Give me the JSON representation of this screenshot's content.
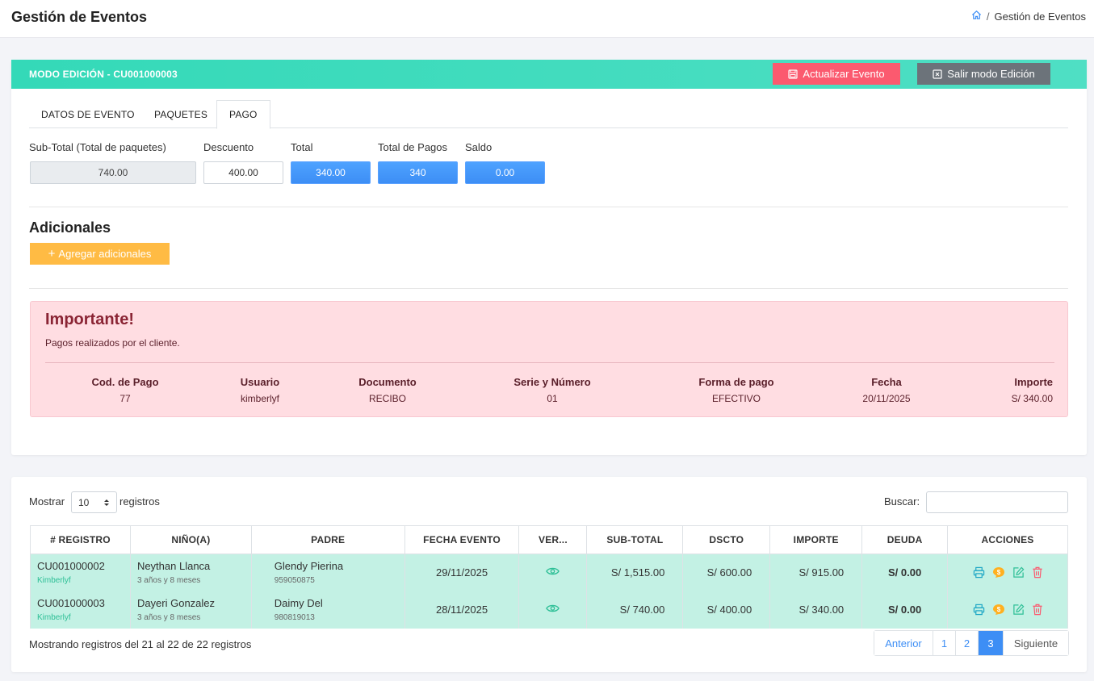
{
  "header": {
    "title": "Gestión de Eventos"
  },
  "breadcrumb": {
    "current": "Gestión de Eventos"
  },
  "edit_bar": {
    "title": "MODO EDICIÓN - CU001000003",
    "update_label": "Actualizar Evento",
    "exit_label": "Salir modo Edición",
    "update_color": "#fb5a6f",
    "exit_color": "#6c737a"
  },
  "tabs": [
    {
      "label": "DATOS DE EVENTO"
    },
    {
      "label": "PAQUETES"
    },
    {
      "label": "PAGO",
      "active": true
    }
  ],
  "summary": {
    "subtotal_label": "Sub-Total (Total de paquetes)",
    "subtotal": "740.00",
    "discount_label": "Descuento",
    "discount": "400.00",
    "total_label": "Total",
    "total": "340.00",
    "payments_label": "Total de Pagos",
    "payments": "340",
    "balance_label": "Saldo",
    "balance": "0.00"
  },
  "extras": {
    "title": "Adicionales",
    "add_label": "Agregar adicionales",
    "add_color": "#ffbb44"
  },
  "alert": {
    "title": "Importante!",
    "subtitle": "Pagos realizados por el cliente.",
    "headers": [
      "Cod. de Pago",
      "Usuario",
      "Documento",
      "Serie y Número",
      "Forma de pago",
      "Fecha",
      "Importe"
    ],
    "row": [
      "77",
      "kimberlyf",
      "RECIBO",
      "01",
      "EFECTIVO",
      "20/11/2025",
      "S/ 340.00"
    ]
  },
  "table_controls": {
    "show_label": "Mostrar",
    "page_size": "10",
    "records_label": "registros",
    "search_label": "Buscar:"
  },
  "table": {
    "columns": [
      "# REGISTRO",
      "NIÑO(A)",
      "PADRE",
      "FECHA EVENTO",
      "VER...",
      "SUB-TOTAL",
      "DSCTO",
      "IMPORTE",
      "DEUDA",
      "ACCIONES"
    ],
    "rows": [
      {
        "registro": "CU001000002",
        "user": "Kimberlyf",
        "nino": "Neythan Llanca",
        "edad": "3 años y 8 meses",
        "padre": "Glendy Pierina",
        "telefono": "959050875",
        "fecha": "29/11/2025",
        "subtotal": "S/ 1,515.00",
        "dscto": "S/ 600.00",
        "importe": "S/ 915.00",
        "deuda": "S/ 0.00"
      },
      {
        "registro": "CU001000003",
        "user": "Kimberlyf",
        "nino": "Dayeri Gonzalez",
        "edad": "3 años y 8 meses",
        "padre": "Daimy Del",
        "telefono": "980819013",
        "fecha": "28/11/2025",
        "subtotal": "S/ 740.00",
        "dscto": "S/ 400.00",
        "importe": "S/ 340.00",
        "deuda": "S/ 0.00"
      }
    ],
    "row_color": "#c3f1e4"
  },
  "footer": {
    "info": "Mostrando registros del 21 al 22 de 22 registros",
    "prev": "Anterior",
    "pages": [
      "1",
      "2",
      "3"
    ],
    "current_page": "3",
    "next": "Siguiente"
  },
  "icons": {
    "home": "home-icon",
    "save": "save-icon",
    "exit": "close-square-icon",
    "plus": "plus-icon",
    "view": "eye-icon",
    "print": "printer-icon",
    "pay": "coin-icon",
    "edit": "edit-icon",
    "delete": "trash-icon",
    "select": "updown-caret-icon"
  }
}
